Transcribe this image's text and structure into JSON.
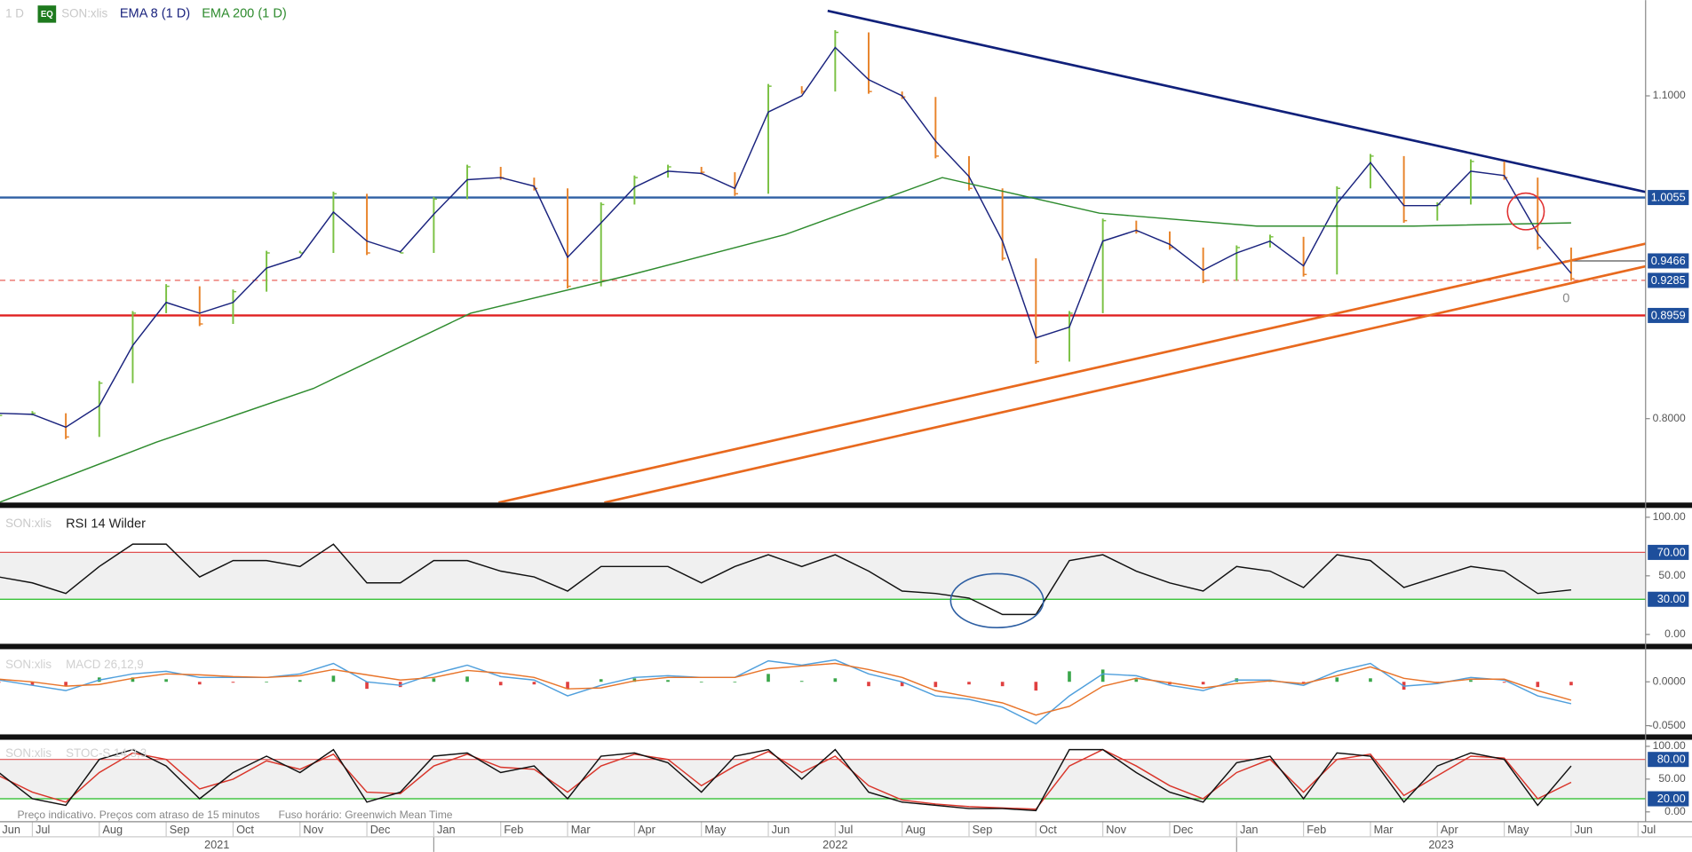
{
  "header": {
    "interval": "1 D",
    "badge": "EQ",
    "symbol": "SON:xlis"
  },
  "chart_data": [
    {
      "type": "line",
      "ylim": [
        0.722,
        1.189
      ],
      "yticks": [
        {
          "value": 0.8,
          "label": "0.8000"
        },
        {
          "value": 1.1,
          "label": "1.1000"
        }
      ],
      "levels": [
        {
          "value": 1.0055,
          "label": "1.0055",
          "color": "#2e5fa3"
        },
        {
          "value": 0.9466,
          "label": "0.9466",
          "color": "#555555",
          "span": "short"
        },
        {
          "value": 0.9285,
          "label": "0.9285",
          "color": "#e8605a",
          "dashed": true
        },
        {
          "value": 0.8959,
          "label": "0.8959",
          "color": "#e02020"
        }
      ],
      "trendlines": [
        {
          "color": "#10207a",
          "values": [
            1.179,
            1.0107
          ]
        },
        {
          "color": "#e8691e",
          "values": [
            0.722,
            0.9626
          ]
        },
        {
          "color": "#e8691e",
          "values": [
            0.722,
            0.9416
          ]
        }
      ],
      "annotation": "0",
      "series": [
        {
          "style": "bars",
          "color": "#7ac143",
          "down_color": "#e8832a",
          "values": [
            0.803,
            0.805,
            0.783,
            0.833,
            0.898,
            0.923,
            0.888,
            0.918,
            0.954,
            0.954,
            1.009,
            0.954,
            0.954,
            1.004,
            1.034,
            1.024,
            1.014,
            0.923,
            0.999,
            1.024,
            1.034,
            1.029,
            1.009,
            1.109,
            1.104,
            1.159,
            1.104,
            1.099,
            1.044,
            1.014,
            0.949,
            0.853,
            0.898,
            0.984,
            0.974,
            0.959,
            0.928,
            0.959,
            0.969,
            0.934,
            1.014,
            1.044,
            0.984,
            0.999,
            1.039,
            1.024,
            0.959,
            0.93
          ]
        },
        {
          "name": "EMA 8 (1 D)",
          "style": "line",
          "color": "#1a237e",
          "values": [
            0.805,
            0.804,
            0.792,
            0.812,
            0.868,
            0.908,
            0.898,
            0.908,
            0.94,
            0.95,
            0.992,
            0.965,
            0.955,
            0.99,
            1.022,
            1.024,
            1.016,
            0.95,
            0.982,
            1.015,
            1.03,
            1.028,
            1.014,
            1.085,
            1.1,
            1.145,
            1.115,
            1.1,
            1.058,
            1.025,
            0.965,
            0.875,
            0.885,
            0.965,
            0.975,
            0.962,
            0.938,
            0.954,
            0.965,
            0.942,
            1.0,
            1.038,
            0.998,
            0.998,
            1.03,
            1.026,
            0.972,
            0.935
          ]
        },
        {
          "name": "EMA 200 (1 D)",
          "style": "line",
          "color": "#2e8b2e",
          "values": [
            0.722,
            0.778,
            0.828,
            0.898,
            0.933,
            0.971,
            1.024,
            0.991,
            0.979,
            0.979,
            0.982
          ]
        }
      ]
    },
    {
      "type": "line",
      "title": "RSI 14 Wilder",
      "ylim": [
        -8,
        107
      ],
      "yticks": [
        {
          "value": 0,
          "label": "0.00"
        },
        {
          "value": 50,
          "label": "50.00"
        },
        {
          "value": 100,
          "label": "100.00"
        }
      ],
      "levels": [
        {
          "value": 30,
          "label": "30.00",
          "color": "#22bb22"
        },
        {
          "value": 70,
          "label": "70.00",
          "color": "#e05050"
        }
      ],
      "shade_band": true,
      "series": [
        {
          "style": "line",
          "color": "#111111",
          "values": [
            49,
            44,
            35,
            58,
            77,
            77,
            49,
            63,
            63,
            58,
            77,
            44,
            44,
            63,
            63,
            54,
            49,
            37,
            58,
            58,
            58,
            44,
            58,
            68,
            58,
            68,
            54,
            37,
            35,
            31,
            17,
            17,
            63,
            68,
            54,
            44,
            37,
            58,
            54,
            40,
            68,
            63,
            40,
            49,
            58,
            54,
            35,
            38
          ]
        }
      ]
    },
    {
      "type": "line",
      "title": "MACD 26,12,9",
      "ylim": [
        -0.06,
        0.036
      ],
      "yticks": [
        {
          "value": -0.05,
          "label": "-0.0500"
        },
        {
          "value": 0,
          "label": "0.0000"
        }
      ],
      "series": [
        {
          "style": "histogram",
          "color": "#3aa64a",
          "down_color": "#e04040",
          "values": [
            -0.001,
            -0.004,
            -0.005,
            0.005,
            0.005,
            0.003,
            -0.003,
            -0.001,
            0,
            0.002,
            0.007,
            -0.008,
            -0.006,
            0.004,
            0.006,
            -0.004,
            -0.003,
            -0.008,
            0.003,
            0.004,
            0.002,
            0,
            0,
            0.009,
            0.001,
            0.004,
            -0.005,
            -0.005,
            -0.006,
            -0.003,
            -0.005,
            -0.01,
            0.012,
            0.014,
            0.003,
            -0.003,
            -0.003,
            0.004,
            0.001,
            -0.002,
            0.005,
            0.004,
            -0.009,
            -0.001,
            0.002,
            -0.001,
            -0.006,
            -0.004
          ]
        },
        {
          "style": "line",
          "color": "#4f9fdc",
          "values": [
            0.002,
            -0.004,
            -0.01,
            0.002,
            0.009,
            0.012,
            0.005,
            0.005,
            0.005,
            0.009,
            0.021,
            0,
            -0.004,
            0.009,
            0.019,
            0.006,
            0.002,
            -0.016,
            -0.004,
            0.005,
            0.007,
            0.005,
            0.005,
            0.024,
            0.019,
            0.025,
            0.009,
            0,
            -0.016,
            -0.02,
            -0.029,
            -0.048,
            -0.016,
            0.009,
            0.007,
            -0.004,
            -0.01,
            0.002,
            0.002,
            -0.004,
            0.012,
            0.021,
            -0.005,
            -0.002,
            0.005,
            0.002,
            -0.016,
            -0.025
          ]
        },
        {
          "style": "line",
          "color": "#e8742a",
          "values": [
            0.003,
            0,
            -0.005,
            -0.003,
            0.004,
            0.009,
            0.008,
            0.006,
            0.005,
            0.007,
            0.014,
            0.008,
            0.002,
            0.005,
            0.013,
            0.01,
            0.005,
            -0.008,
            -0.007,
            0.001,
            0.005,
            0.005,
            0.005,
            0.015,
            0.018,
            0.021,
            0.014,
            0.005,
            -0.01,
            -0.017,
            -0.024,
            -0.038,
            -0.028,
            -0.005,
            0.004,
            -0.001,
            -0.007,
            -0.002,
            0.001,
            -0.002,
            0.007,
            0.017,
            0.004,
            -0.001,
            0.003,
            0.003,
            -0.01,
            -0.021
          ]
        }
      ]
    },
    {
      "type": "line",
      "title": "STOC-S 14,3,3",
      "ylim": [
        -15,
        110
      ],
      "yticks": [
        {
          "value": 0,
          "label": "0.00"
        },
        {
          "value": 50,
          "label": "50.00"
        },
        {
          "value": 100,
          "label": "100.00"
        }
      ],
      "levels": [
        {
          "value": 20,
          "label": "20.00",
          "color": "#22bb22"
        },
        {
          "value": 80,
          "label": "80.00",
          "color": "#e05050"
        }
      ],
      "shade_band": true,
      "series": [
        {
          "style": "line",
          "color": "#d9352a",
          "values": [
            55,
            30,
            15,
            60,
            90,
            80,
            35,
            50,
            78,
            65,
            88,
            30,
            28,
            70,
            88,
            68,
            65,
            30,
            70,
            88,
            80,
            40,
            70,
            92,
            60,
            85,
            40,
            18,
            12,
            8,
            6,
            4,
            70,
            95,
            70,
            40,
            20,
            60,
            80,
            30,
            80,
            88,
            25,
            55,
            85,
            82,
            20,
            45
          ]
        },
        {
          "style": "line",
          "color": "#111111",
          "values": [
            60,
            20,
            10,
            80,
            95,
            70,
            20,
            60,
            85,
            60,
            95,
            15,
            30,
            85,
            90,
            60,
            70,
            20,
            85,
            90,
            75,
            30,
            85,
            95,
            50,
            95,
            30,
            15,
            10,
            5,
            5,
            2,
            95,
            95,
            60,
            30,
            15,
            75,
            85,
            20,
            90,
            85,
            15,
            70,
            90,
            80,
            10,
            70
          ]
        }
      ]
    }
  ],
  "x_axis": {
    "months": [
      "Jun",
      "Jul",
      "Aug",
      "Sep",
      "Oct",
      "Nov",
      "Dec",
      "Jan",
      "Feb",
      "Mar",
      "Apr",
      "May",
      "Jun",
      "Jul",
      "Aug",
      "Sep",
      "Oct",
      "Nov",
      "Dec",
      "Jan",
      "Feb",
      "Mar",
      "Apr",
      "May",
      "Jun",
      "Jul"
    ],
    "years": [
      "2021",
      "2022",
      "2023"
    ]
  },
  "footer": {
    "note": "Preço indicativo. Preços com atraso de 15 minutos",
    "timezone": "Fuso horário: Greenwich Mean Time"
  }
}
